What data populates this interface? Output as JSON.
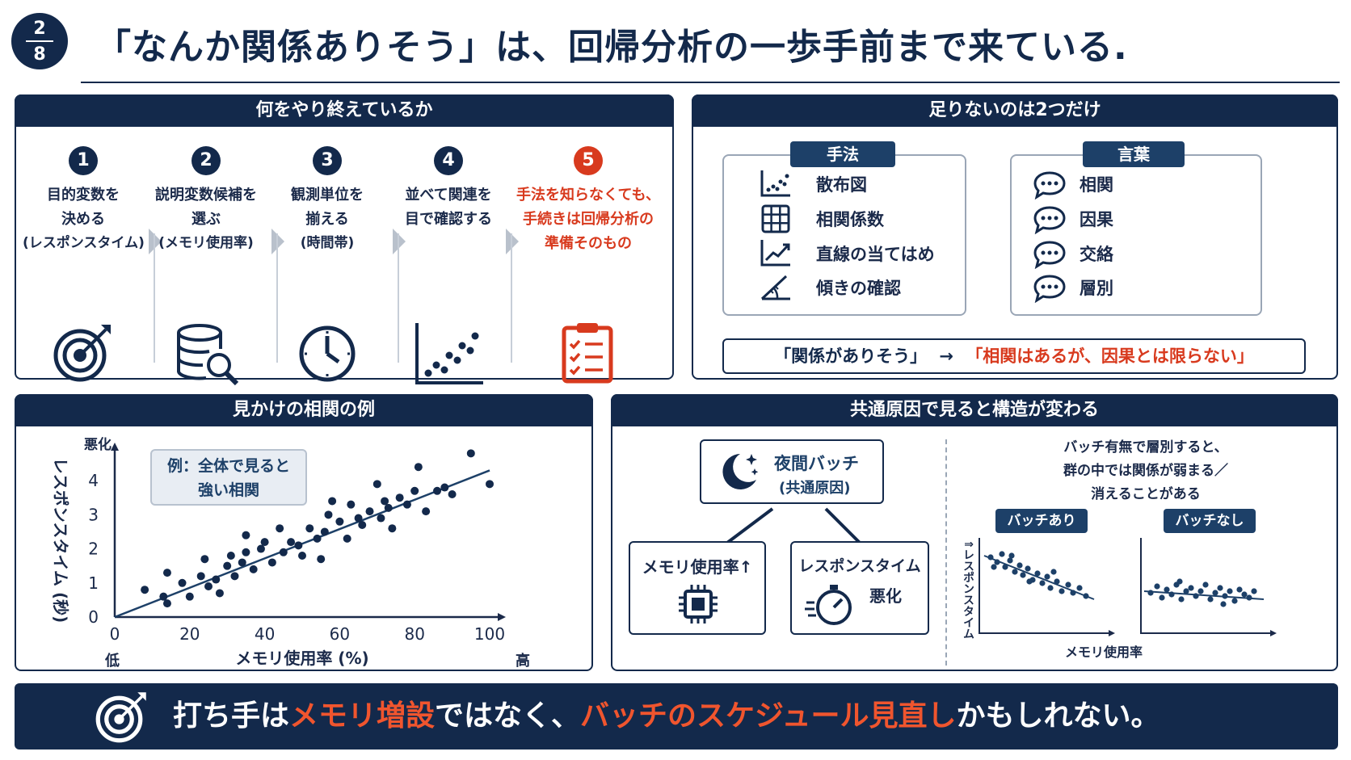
{
  "page": {
    "current": "2",
    "total": "8"
  },
  "title": "「なんか関係ありそう」は、回帰分析の一歩手前まで来ている.",
  "panel1": {
    "header": "何をやり終えているか",
    "steps": [
      {
        "num": "1",
        "line1": "目的変数を",
        "line2": "決める",
        "sub": "(レスポンスタイム)",
        "icon": "target-icon"
      },
      {
        "num": "2",
        "line1": "説明変数候補を",
        "line2": "選ぶ",
        "sub": "(メモリ使用率)",
        "icon": "database-search-icon"
      },
      {
        "num": "3",
        "line1": "観測単位を",
        "line2": "揃える",
        "sub": "(時間帯)",
        "icon": "clock-icon"
      },
      {
        "num": "4",
        "line1": "並べて関連を",
        "line2": "目で確認する",
        "sub": "",
        "icon": "scatter-icon"
      },
      {
        "num": "5",
        "line1": "手法を知らなくても、",
        "line2": "手続きは回帰分析の",
        "sub": "準備そのもの",
        "icon": "checklist-icon"
      }
    ]
  },
  "panel2": {
    "header": "足りないのは2つだけ",
    "methods_title": "手法",
    "methods": [
      {
        "label": "散布図",
        "icon": "scatter-plot-icon"
      },
      {
        "label": "相関係数",
        "icon": "grid-icon"
      },
      {
        "label": "直線の当てはめ",
        "icon": "trend-line-icon"
      },
      {
        "label": "傾きの確認",
        "icon": "slope-icon"
      }
    ],
    "words_title": "言葉",
    "words": [
      {
        "label": "相関",
        "icon": "speech-bubble-icon"
      },
      {
        "label": "因果",
        "icon": "speech-bubble-icon"
      },
      {
        "label": "交絡",
        "icon": "speech-bubble-icon"
      },
      {
        "label": "層別",
        "icon": "speech-bubble-icon"
      }
    ],
    "conclusion_left": "「関係がありそう」",
    "conclusion_arrow": "→",
    "conclusion_right": "「相関はあるが、因果とは限らない」"
  },
  "panel3": {
    "header": "見かけの相関の例",
    "callout_line1": "例：全体で見ると",
    "callout_line2": "強い相関",
    "y_top_label": "悪化",
    "x_low_label": "低",
    "x_high_label": "高"
  },
  "chart_data": {
    "type": "scatter",
    "xlabel": "メモリ使用率 (%)",
    "ylabel": "レスポンスタイム (秒)",
    "xlim": [
      0,
      100
    ],
    "ylim": [
      0,
      4.5
    ],
    "xticks": [
      "0",
      "20",
      "40",
      "60",
      "80",
      "100"
    ],
    "yticks": [
      "0",
      "1",
      "2",
      "3",
      "4"
    ],
    "points": [
      [
        8,
        0.8
      ],
      [
        13,
        0.6
      ],
      [
        14,
        1.3
      ],
      [
        14,
        0.4
      ],
      [
        18,
        1.0
      ],
      [
        20,
        0.6
      ],
      [
        23,
        1.2
      ],
      [
        24,
        1.7
      ],
      [
        25,
        0.9
      ],
      [
        27,
        1.1
      ],
      [
        28,
        0.7
      ],
      [
        30,
        1.5
      ],
      [
        31,
        1.8
      ],
      [
        32,
        1.2
      ],
      [
        34,
        1.6
      ],
      [
        35,
        1.9
      ],
      [
        35,
        2.4
      ],
      [
        37,
        1.4
      ],
      [
        39,
        2.0
      ],
      [
        40,
        2.2
      ],
      [
        42,
        1.6
      ],
      [
        44,
        2.6
      ],
      [
        45,
        1.9
      ],
      [
        47,
        2.2
      ],
      [
        49,
        2.1
      ],
      [
        50,
        1.8
      ],
      [
        52,
        2.6
      ],
      [
        54,
        2.3
      ],
      [
        55,
        1.7
      ],
      [
        56,
        2.5
      ],
      [
        57,
        3.0
      ],
      [
        58,
        3.4
      ],
      [
        60,
        2.8
      ],
      [
        62,
        2.3
      ],
      [
        63,
        3.3
      ],
      [
        65,
        2.9
      ],
      [
        66,
        2.7
      ],
      [
        68,
        3.1
      ],
      [
        70,
        3.9
      ],
      [
        71,
        2.9
      ],
      [
        72,
        3.4
      ],
      [
        73,
        3.2
      ],
      [
        74,
        2.6
      ],
      [
        76,
        3.5
      ],
      [
        78,
        3.3
      ],
      [
        80,
        3.7
      ],
      [
        81,
        4.4
      ],
      [
        83,
        3.1
      ],
      [
        86,
        3.7
      ],
      [
        88,
        3.8
      ],
      [
        90,
        3.6
      ],
      [
        95,
        4.8
      ],
      [
        100,
        3.9
      ]
    ],
    "trend": [
      [
        0,
        0
      ],
      [
        100,
        4.3
      ]
    ]
  },
  "panel4": {
    "header": "共通原因で見ると構造が変わる",
    "cause_line1": "夜間バッチ",
    "cause_line2": "(共通原因)",
    "effect1": "メモリ使用率↑",
    "effect2_line1": "レスポンスタイム",
    "effect2_line2": "悪化",
    "note_line1": "バッチ有無で層別すると、",
    "note_line2": "群の中では関係が弱まる／",
    "note_line3": "消えることがある",
    "group1": "バッチあり",
    "group2": "バッチなし",
    "mini_ylabel": "レスポンスタイム",
    "mini_xlabel": "メモリ使用率"
  },
  "footer": {
    "pre": "打ち手は",
    "hl1": "メモリ増設",
    "mid": "ではなく、",
    "hl2": "バッチのスケジュール見直し",
    "post": "かもしれない。"
  }
}
